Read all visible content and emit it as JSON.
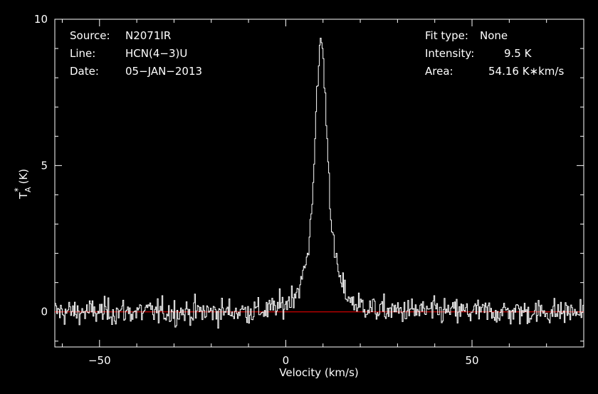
{
  "header": {
    "source_label": "Source:",
    "source_value": "N2071IR",
    "line_label": "Line:",
    "line_value": "HCN(4−3)U",
    "date_label": "Date:",
    "date_value": "05−JAN−2013",
    "fit_label": "Fit type:",
    "fit_value": "None",
    "intensity_label": "Intensity:",
    "intensity_value": "9.5 K",
    "area_label": "Area:",
    "area_value": "54.16 K∗km/s"
  },
  "chart_data": {
    "type": "line",
    "xlabel": "Velocity (km/s)",
    "ylabel_main": "T",
    "ylabel_sup": "*",
    "ylabel_sub": "A",
    "ylabel_unit": "(K)",
    "xlim": [
      -62,
      80
    ],
    "ylim": [
      -1.2,
      10
    ],
    "x_ticks": [
      -50,
      0,
      50
    ],
    "x_tick_labels": [
      "−50",
      "0",
      "50"
    ],
    "y_ticks": [
      0,
      5,
      10
    ],
    "y_tick_labels": [
      "0",
      "5",
      "10"
    ],
    "grid": false,
    "baseline": {
      "y": 0,
      "color": "#ff0000"
    },
    "series": [
      {
        "color": "#ffffff",
        "step": true,
        "noise_rms": 0.22,
        "x_start": -62,
        "x_end": 80,
        "channel_width": 0.25,
        "peak": {
          "x": 9.5,
          "y": 9.5
        },
        "fwhm": 4.2,
        "x": [
          -62,
          -40,
          -20,
          -5,
          0,
          4,
          6,
          7,
          8,
          9,
          9.5,
          10,
          11,
          12,
          13,
          15,
          18,
          25,
          50,
          80
        ],
        "y": [
          0,
          0,
          0,
          0.05,
          0.25,
          0.9,
          2.0,
          3.6,
          6.3,
          8.8,
          9.5,
          8.8,
          6.3,
          3.6,
          2.0,
          0.9,
          0.3,
          0.05,
          0,
          0
        ]
      }
    ]
  }
}
